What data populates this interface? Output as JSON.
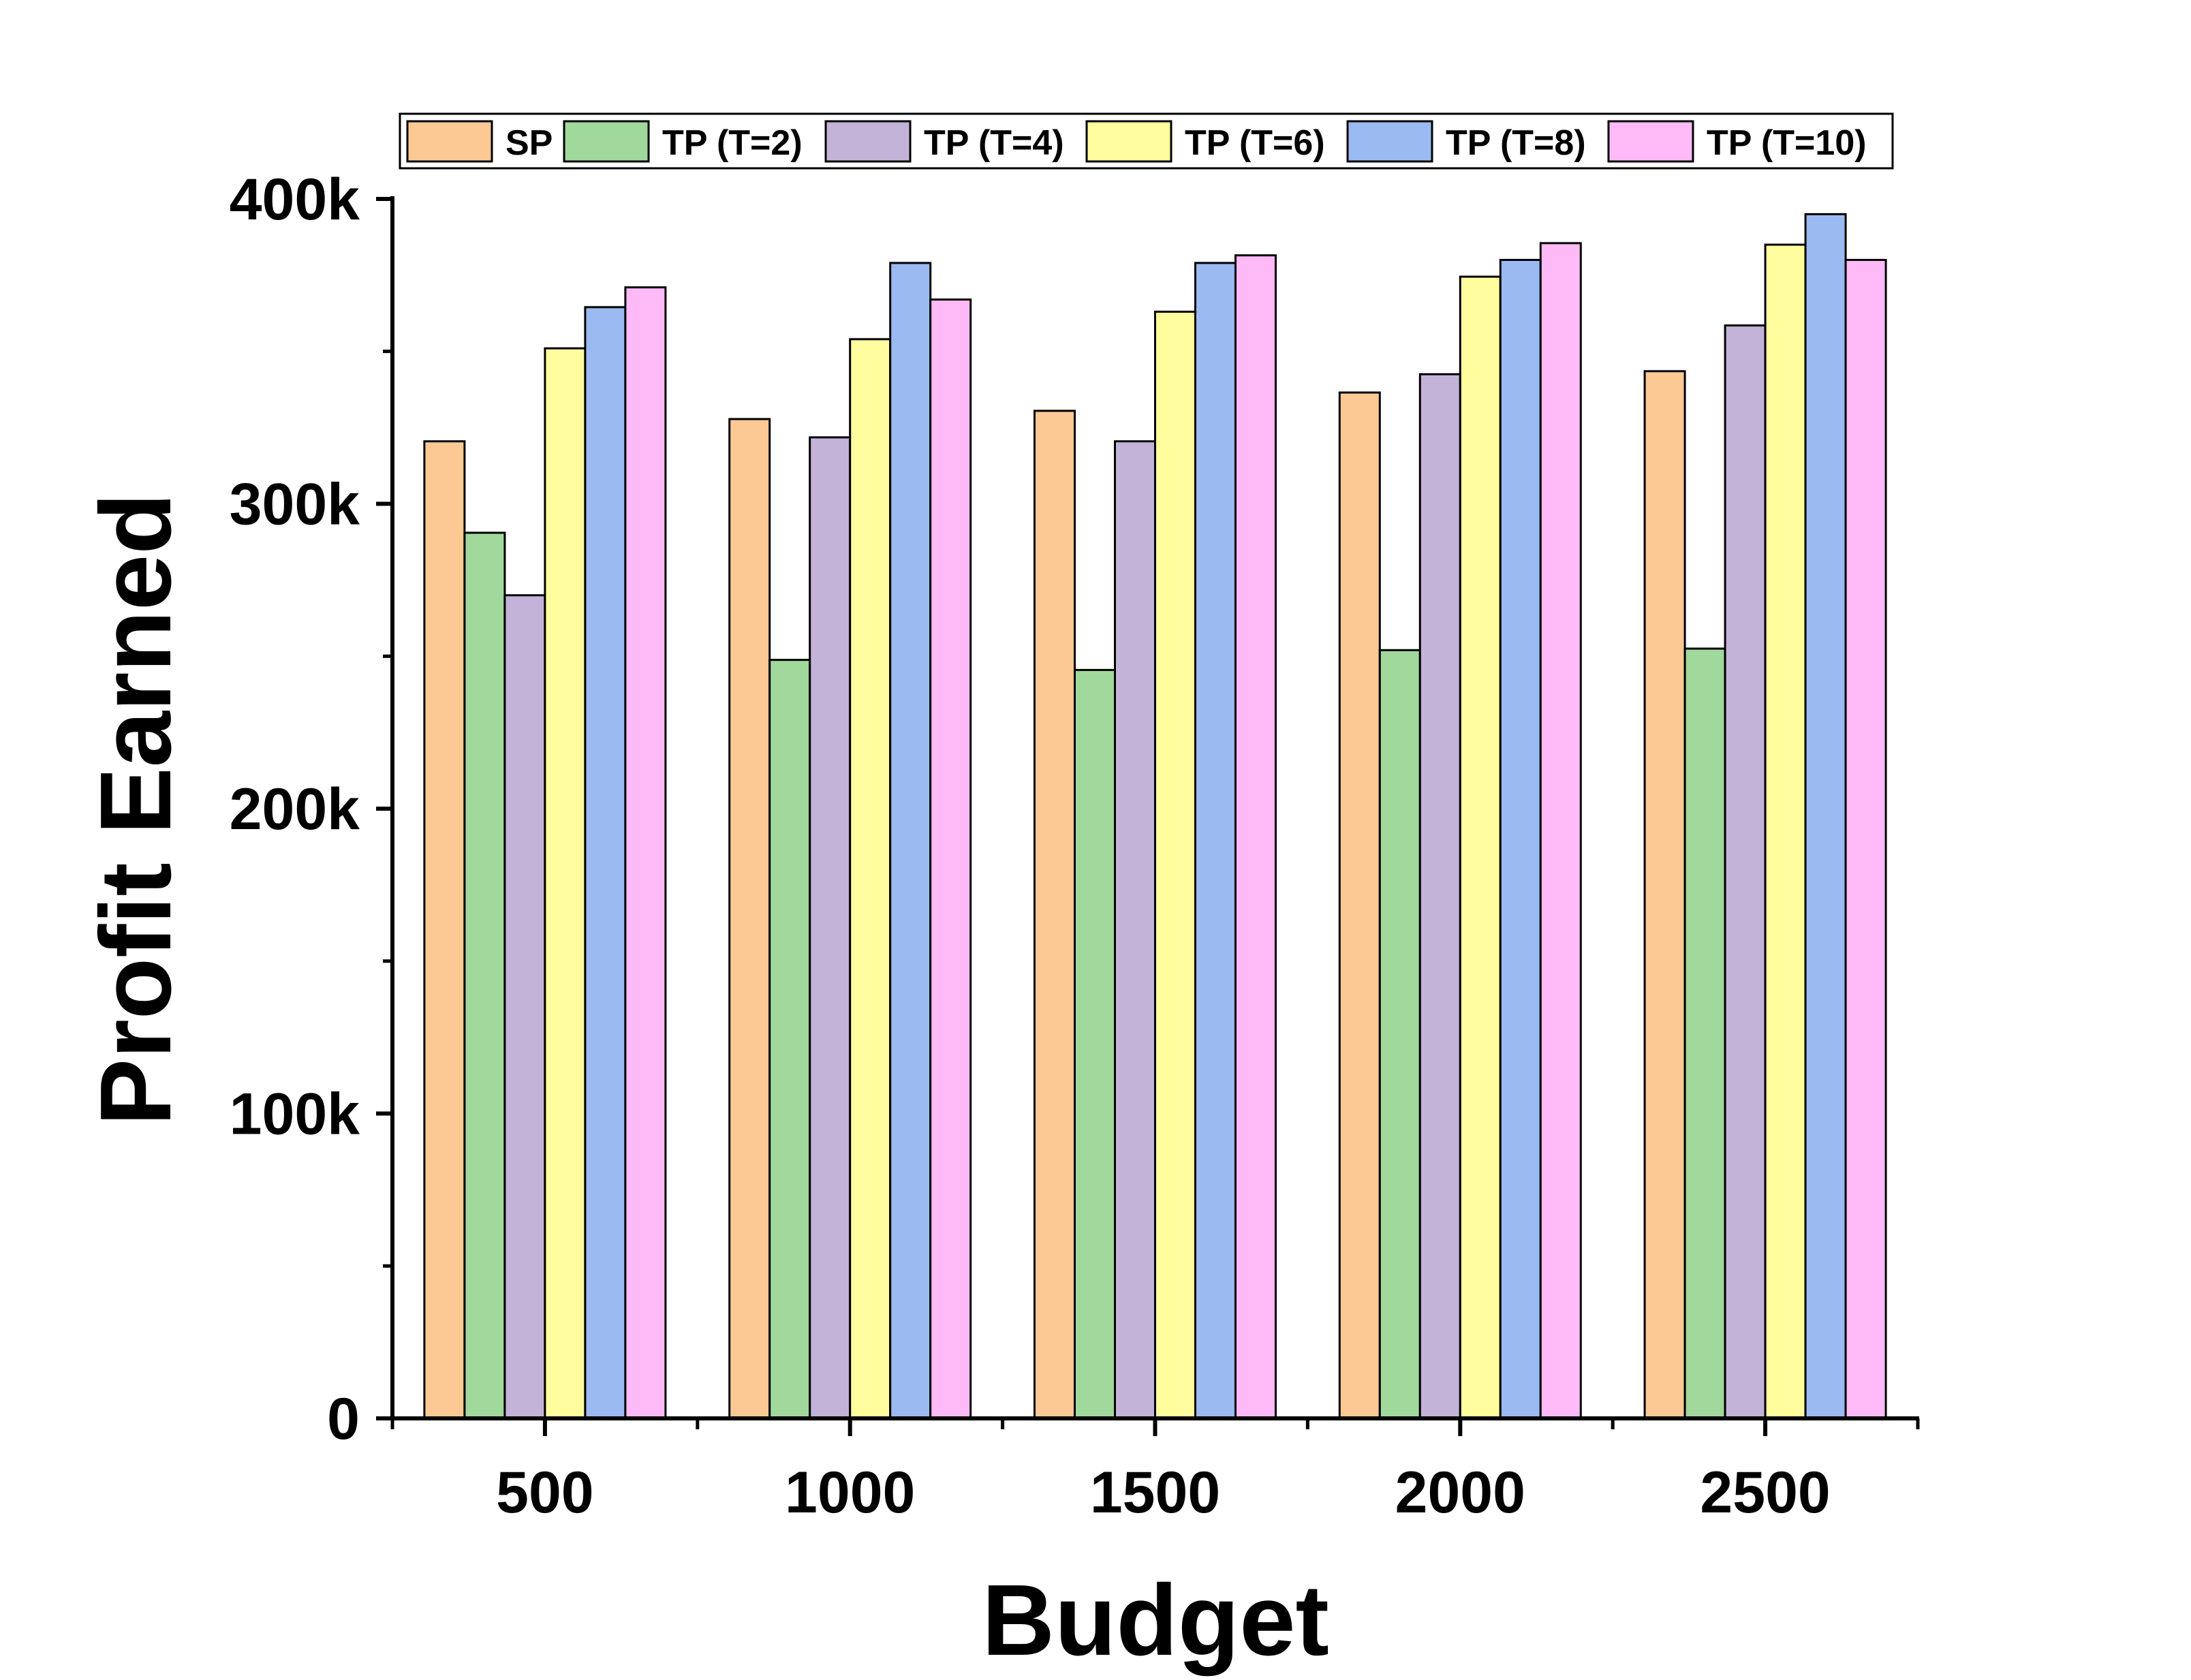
{
  "chart_data": {
    "type": "bar",
    "title": "",
    "xlabel": "Budget",
    "ylabel": "Profit Earned",
    "categories": [
      "500",
      "1000",
      "1500",
      "2000",
      "2500"
    ],
    "ylim": [
      0,
      400000
    ],
    "yticks": [
      {
        "value": 0,
        "label": "0"
      },
      {
        "value": 100000,
        "label": "100k"
      },
      {
        "value": 200000,
        "label": "200k"
      },
      {
        "value": 300000,
        "label": "300k"
      },
      {
        "value": 400000,
        "label": "400k"
      }
    ],
    "grid": false,
    "legend_position": "top",
    "series": [
      {
        "name": "SP",
        "color": "#FCC995",
        "values": [
          320500,
          327800,
          330500,
          336500,
          343500
        ]
      },
      {
        "name": "TP (T=2)",
        "color": "#A0D99B",
        "values": [
          290500,
          248800,
          245500,
          252000,
          252500
        ]
      },
      {
        "name": "TP (T=4)",
        "color": "#C4B3D8",
        "values": [
          270000,
          321800,
          320500,
          342500,
          358500
        ]
      },
      {
        "name": "TP (T=6)",
        "color": "#FFFD9E",
        "values": [
          351000,
          354000,
          363000,
          374500,
          385000
        ]
      },
      {
        "name": "TP (T=8)",
        "color": "#9BBAF2",
        "values": [
          364500,
          379000,
          379000,
          380000,
          395000
        ]
      },
      {
        "name": "TP (T=10)",
        "color": "#FEBAF7",
        "values": [
          371000,
          367000,
          381500,
          385500,
          380000
        ]
      }
    ]
  }
}
